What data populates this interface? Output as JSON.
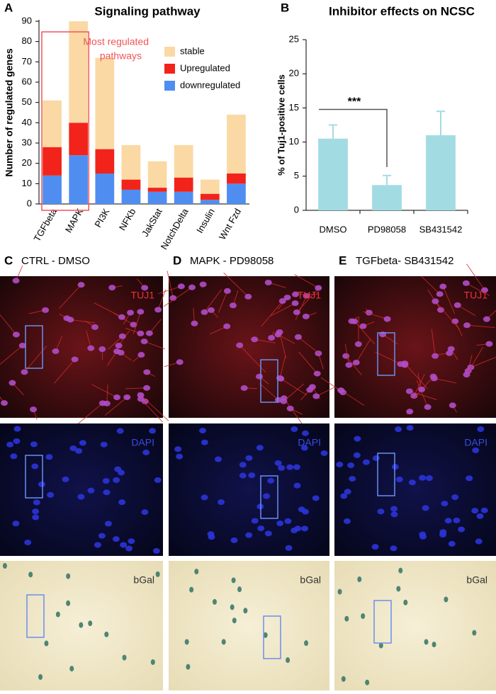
{
  "chart_data": [
    {
      "type": "stacked_bar",
      "panel": "A",
      "title": "Signaling pathway",
      "y_label": "Number of regulated genes",
      "annotation": [
        "Most regulated",
        "pathways"
      ],
      "categories": [
        "TGFbeta",
        "MAPK",
        "PI3K",
        "NFKb",
        "JakStat",
        "NotchDelta",
        "Insulin",
        "Wnt Fzd"
      ],
      "series": [
        {
          "name": "downregulated",
          "color": "#4f8ef0",
          "values": [
            14,
            24,
            15,
            7,
            6,
            6,
            2,
            10
          ]
        },
        {
          "name": "Upregulated",
          "color": "#f2231a",
          "values": [
            14,
            16,
            12,
            5,
            2,
            7,
            3,
            5
          ]
        },
        {
          "name": "stable",
          "color": "#fbd9a4",
          "values": [
            23,
            50,
            45,
            17,
            13,
            16,
            7,
            29
          ]
        }
      ],
      "highlight": [
        0,
        1
      ],
      "highlight_color": "#f2545b",
      "ylim": [
        0,
        90
      ],
      "yticks": [
        0,
        10,
        20,
        30,
        40,
        50,
        60,
        70,
        80,
        90
      ]
    },
    {
      "type": "bar",
      "panel": "B",
      "title": "Inhibitor effects on NCSC",
      "y_label": "% of Tuj1-positive cells",
      "annotation": "***",
      "categories": [
        "DMSO",
        "PD98058",
        "SB431542"
      ],
      "values": [
        10.5,
        3.7,
        11
      ],
      "errors": [
        2,
        1.4,
        3.5
      ],
      "color": "#a3dbe3",
      "ylim": [
        0,
        25
      ],
      "yticks": [
        0,
        5,
        10,
        15,
        20,
        25
      ]
    }
  ],
  "panels": [
    {
      "label": "C",
      "title": "CTRL - DMSO",
      "stains": [
        "TUJ1",
        "DAPI",
        "bGal"
      ]
    },
    {
      "label": "D",
      "title": "MAPK - PD98058",
      "stains": [
        "TUJ1",
        "DAPI",
        "bGal"
      ]
    },
    {
      "label": "E",
      "title": "TGFbeta- SB431542",
      "stains": [
        "TUJ1",
        "DAPI",
        "bGal"
      ]
    }
  ]
}
